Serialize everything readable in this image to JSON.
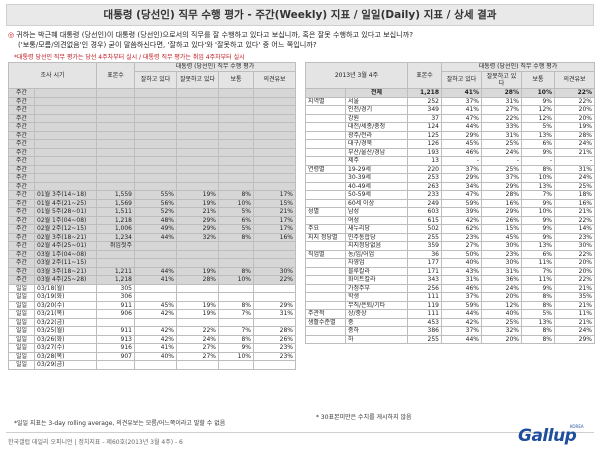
{
  "title": "대통령 (당선인) 직무 수행 평가 - 주간(Weekly) 지표 / 일일(Daily) 지표 / 상세 결과",
  "question": {
    "line1": "귀하는 박근혜 대통령 (당선인)이 대통령 (당선인)으로서의 직무를 잘 수행하고 있다고 보십니까, 혹은 잘못 수행하고 있다고 보십니까?",
    "line2": "('보통/모름/의견없음'인 경우) 굳이 말씀하신다면, '잘하고 있다'와 '잘못하고 있다' 중 어느 쪽입니까?"
  },
  "red_note": "*대통령 당선인 직무 평가는 당선 4주차부터 실시 / 대통령 직무 평가는 취임 4주차부터 실시",
  "left_table": {
    "header": {
      "period": "조사 시기",
      "sample": "표본수",
      "group": "대통령 (당선인) 직무 수행 평가",
      "good": "잘하고 있다",
      "bad": "잘못하고 있다",
      "normal": "보통",
      "opinion": "의견유보"
    },
    "rows": [
      {
        "a": "주간",
        "b": "",
        "n": "",
        "g": "",
        "x": "",
        "m": "",
        "o": "",
        "style": "gray"
      },
      {
        "a": "주간",
        "b": "",
        "n": "",
        "g": "",
        "x": "",
        "m": "",
        "o": "",
        "style": "gray"
      },
      {
        "a": "주간",
        "b": "",
        "n": "",
        "g": "",
        "x": "",
        "m": "",
        "o": "",
        "style": "gray"
      },
      {
        "a": "주간",
        "b": "",
        "n": "",
        "g": "",
        "x": "",
        "m": "",
        "o": "",
        "style": "gray"
      },
      {
        "a": "주간",
        "b": "",
        "n": "",
        "g": "",
        "x": "",
        "m": "",
        "o": "",
        "style": "gray"
      },
      {
        "a": "주간",
        "b": "",
        "n": "",
        "g": "",
        "x": "",
        "m": "",
        "o": "",
        "style": "gray"
      },
      {
        "a": "주간",
        "b": "",
        "n": "",
        "g": "",
        "x": "",
        "m": "",
        "o": "",
        "style": "gray"
      },
      {
        "a": "주간",
        "b": "",
        "n": "",
        "g": "",
        "x": "",
        "m": "",
        "o": "",
        "style": "gray"
      },
      {
        "a": "주간",
        "b": "",
        "n": "",
        "g": "",
        "x": "",
        "m": "",
        "o": "",
        "style": "gray"
      },
      {
        "a": "주간",
        "b": "",
        "n": "",
        "g": "",
        "x": "",
        "m": "",
        "o": "",
        "style": "gray"
      },
      {
        "a": "주간",
        "b": "",
        "n": "",
        "g": "",
        "x": "",
        "m": "",
        "o": "",
        "style": "gray"
      },
      {
        "a": "주간",
        "b": "",
        "n": "",
        "g": "",
        "x": "",
        "m": "",
        "o": "",
        "style": "gray"
      },
      {
        "a": "주간",
        "b": "01월 3주(14~18)",
        "n": "1,559",
        "g": "55%",
        "x": "19%",
        "m": "8%",
        "o": "17%",
        "style": "gray"
      },
      {
        "a": "주간",
        "b": "01월 4주(21~25)",
        "n": "1,569",
        "g": "56%",
        "x": "19%",
        "m": "10%",
        "o": "15%",
        "style": "gray"
      },
      {
        "a": "주간",
        "b": "01월 5주(28~01)",
        "n": "1,511",
        "g": "52%",
        "x": "21%",
        "m": "5%",
        "o": "21%",
        "style": "gray"
      },
      {
        "a": "주간",
        "b": "02월 1주(04~08)",
        "n": "1,218",
        "g": "48%",
        "x": "29%",
        "m": "6%",
        "o": "17%",
        "style": "gray"
      },
      {
        "a": "주간",
        "b": "02월 2주(12~15)",
        "n": "1,006",
        "g": "49%",
        "x": "29%",
        "m": "5%",
        "o": "17%",
        "style": "gray"
      },
      {
        "a": "주간",
        "b": "02월 3주(18~21)",
        "n": "1,234",
        "g": "44%",
        "x": "32%",
        "m": "8%",
        "o": "16%",
        "style": "gray"
      },
      {
        "a": "주간",
        "b": "02월 4주(25~01)",
        "n": "취임첫주",
        "g": "",
        "x": "",
        "m": "",
        "o": "",
        "style": "gray"
      },
      {
        "a": "주간",
        "b": "03월 1주(04~08)",
        "n": "",
        "g": "",
        "x": "",
        "m": "",
        "o": "",
        "style": "gray"
      },
      {
        "a": "주간",
        "b": "03월 2주(11~15)",
        "n": "",
        "g": "",
        "x": "",
        "m": "",
        "o": "",
        "style": "gray"
      },
      {
        "a": "주간",
        "b": "03월 3주(18~21)",
        "n": "1,211",
        "g": "44%",
        "x": "19%",
        "m": "8%",
        "o": "30%",
        "style": "gray"
      },
      {
        "a": "주간",
        "b": "03월 4주(25~28)",
        "n": "1,218",
        "g": "41%",
        "x": "28%",
        "m": "10%",
        "o": "22%",
        "style": "gray"
      },
      {
        "a": "일일",
        "b": "03/18(월)",
        "n": "305",
        "g": "",
        "x": "",
        "m": "",
        "o": "",
        "style": "white"
      },
      {
        "a": "일일",
        "b": "03/19(화)",
        "n": "306",
        "g": "",
        "x": "",
        "m": "",
        "o": "",
        "style": "white"
      },
      {
        "a": "일일",
        "b": "03/20(수)",
        "n": "911",
        "g": "45%",
        "x": "19%",
        "m": "8%",
        "o": "29%",
        "style": "white"
      },
      {
        "a": "일일",
        "b": "03/21(목)",
        "n": "906",
        "g": "42%",
        "x": "19%",
        "m": "7%",
        "o": "31%",
        "style": "white"
      },
      {
        "a": "일일",
        "b": "03/22(금)",
        "n": "",
        "g": "",
        "x": "",
        "m": "",
        "o": "",
        "style": "white"
      },
      {
        "a": "일일",
        "b": "03/25(월)",
        "n": "911",
        "g": "42%",
        "x": "22%",
        "m": "7%",
        "o": "28%",
        "style": "white"
      },
      {
        "a": "일일",
        "b": "03/26(화)",
        "n": "913",
        "g": "42%",
        "x": "24%",
        "m": "8%",
        "o": "26%",
        "style": "white"
      },
      {
        "a": "일일",
        "b": "03/27(수)",
        "n": "916",
        "g": "41%",
        "x": "27%",
        "m": "9%",
        "o": "23%",
        "style": "white"
      },
      {
        "a": "일일",
        "b": "03/28(목)",
        "n": "907",
        "g": "40%",
        "x": "27%",
        "m": "10%",
        "o": "23%",
        "style": "white"
      },
      {
        "a": "일일",
        "b": "03/29(금)",
        "n": "",
        "g": "",
        "x": "",
        "m": "",
        "o": "",
        "style": "white"
      }
    ],
    "footnote": "*일일 지표는 3-day rolling average, 의견유보는 모름/어느쪽이라고 말할 수 없음"
  },
  "right_table": {
    "header": {
      "period": "2013년 3월 4주",
      "sample": "표본수",
      "group": "대통령 (당선인) 직무 수행 평가",
      "good": "잘하고 있다",
      "bad": "잘못하고 있다",
      "normal": "보통",
      "opinion": "의견유보"
    },
    "rows": [
      {
        "cat": "",
        "sub": "전체",
        "n": "1,218",
        "g": "41%",
        "x": "28%",
        "m": "10%",
        "o": "22%",
        "style": "total"
      },
      {
        "cat": "지역별",
        "sub": "서울",
        "n": "252",
        "g": "37%",
        "x": "31%",
        "m": "9%",
        "o": "22%",
        "style": "white"
      },
      {
        "cat": "",
        "sub": "인천/경기",
        "n": "349",
        "g": "41%",
        "x": "27%",
        "m": "12%",
        "o": "20%",
        "style": "white"
      },
      {
        "cat": "",
        "sub": "강원",
        "n": "37",
        "g": "47%",
        "x": "22%",
        "m": "12%",
        "o": "20%",
        "style": "white"
      },
      {
        "cat": "",
        "sub": "대전/세종/충청",
        "n": "124",
        "g": "44%",
        "x": "33%",
        "m": "5%",
        "o": "19%",
        "style": "white"
      },
      {
        "cat": "",
        "sub": "광주/전라",
        "n": "125",
        "g": "29%",
        "x": "31%",
        "m": "13%",
        "o": "28%",
        "style": "white"
      },
      {
        "cat": "",
        "sub": "대구/경북",
        "n": "126",
        "g": "45%",
        "x": "25%",
        "m": "6%",
        "o": "24%",
        "style": "white"
      },
      {
        "cat": "",
        "sub": "부산/울산/경남",
        "n": "193",
        "g": "46%",
        "x": "24%",
        "m": "9%",
        "o": "21%",
        "style": "white"
      },
      {
        "cat": "",
        "sub": "제주",
        "n": "13",
        "g": "-",
        "x": "-",
        "m": "-",
        "o": "-",
        "style": "white"
      },
      {
        "cat": "연령별",
        "sub": "19-29세",
        "n": "220",
        "g": "37%",
        "x": "25%",
        "m": "8%",
        "o": "31%",
        "style": "white"
      },
      {
        "cat": "",
        "sub": "30-39세",
        "n": "253",
        "g": "29%",
        "x": "37%",
        "m": "10%",
        "o": "24%",
        "style": "white"
      },
      {
        "cat": "",
        "sub": "40-49세",
        "n": "263",
        "g": "34%",
        "x": "29%",
        "m": "13%",
        "o": "25%",
        "style": "white"
      },
      {
        "cat": "",
        "sub": "50-59세",
        "n": "233",
        "g": "47%",
        "x": "28%",
        "m": "7%",
        "o": "18%",
        "style": "white"
      },
      {
        "cat": "",
        "sub": "60세 이상",
        "n": "249",
        "g": "59%",
        "x": "16%",
        "m": "9%",
        "o": "16%",
        "style": "white"
      },
      {
        "cat": "성별",
        "sub": "남성",
        "n": "603",
        "g": "39%",
        "x": "29%",
        "m": "10%",
        "o": "21%",
        "style": "white"
      },
      {
        "cat": "",
        "sub": "여성",
        "n": "615",
        "g": "42%",
        "x": "26%",
        "m": "9%",
        "o": "22%",
        "style": "white"
      },
      {
        "cat": "주요",
        "sub": "새누리당",
        "n": "502",
        "g": "62%",
        "x": "15%",
        "m": "9%",
        "o": "14%",
        "style": "white"
      },
      {
        "cat": "지지 정당별",
        "sub": "민주통합당",
        "n": "255",
        "g": "23%",
        "x": "45%",
        "m": "9%",
        "o": "23%",
        "style": "white"
      },
      {
        "cat": "",
        "sub": "지지정당없음",
        "n": "359",
        "g": "27%",
        "x": "30%",
        "m": "13%",
        "o": "30%",
        "style": "white"
      },
      {
        "cat": "직업별",
        "sub": "농/임/어업",
        "n": "36",
        "g": "50%",
        "x": "23%",
        "m": "6%",
        "o": "22%",
        "style": "white"
      },
      {
        "cat": "",
        "sub": "자영업",
        "n": "177",
        "g": "40%",
        "x": "30%",
        "m": "11%",
        "o": "20%",
        "style": "white"
      },
      {
        "cat": "",
        "sub": "블루칼라",
        "n": "171",
        "g": "43%",
        "x": "31%",
        "m": "7%",
        "o": "20%",
        "style": "white"
      },
      {
        "cat": "",
        "sub": "화이트칼라",
        "n": "343",
        "g": "31%",
        "x": "36%",
        "m": "11%",
        "o": "22%",
        "style": "white"
      },
      {
        "cat": "",
        "sub": "가정주부",
        "n": "256",
        "g": "46%",
        "x": "24%",
        "m": "9%",
        "o": "21%",
        "style": "white"
      },
      {
        "cat": "",
        "sub": "학생",
        "n": "111",
        "g": "37%",
        "x": "20%",
        "m": "8%",
        "o": "35%",
        "style": "white"
      },
      {
        "cat": "",
        "sub": "무직/은퇴/기타",
        "n": "119",
        "g": "59%",
        "x": "12%",
        "m": "8%",
        "o": "21%",
        "style": "white"
      },
      {
        "cat": "주관적",
        "sub": "상/중상",
        "n": "111",
        "g": "44%",
        "x": "40%",
        "m": "5%",
        "o": "11%",
        "style": "white"
      },
      {
        "cat": "생활수준별",
        "sub": "중",
        "n": "453",
        "g": "42%",
        "x": "25%",
        "m": "13%",
        "o": "21%",
        "style": "white"
      },
      {
        "cat": "",
        "sub": "중하",
        "n": "386",
        "x": "32%",
        "g": "37%",
        "m": "8%",
        "o": "24%",
        "style": "white"
      },
      {
        "cat": "",
        "sub": "하",
        "n": "255",
        "g": "44%",
        "x": "20%",
        "m": "8%",
        "o": "29%",
        "style": "white"
      }
    ],
    "footnote": "* 30표본미만은 수치를 게시하지 않음"
  },
  "footer": {
    "text": "한국갤럽 데일리 오피니언 | 정치지표 - 제60호(2013년 3월 4주) - 6",
    "logo": "Gallup",
    "logo_sub": "KOREA"
  }
}
